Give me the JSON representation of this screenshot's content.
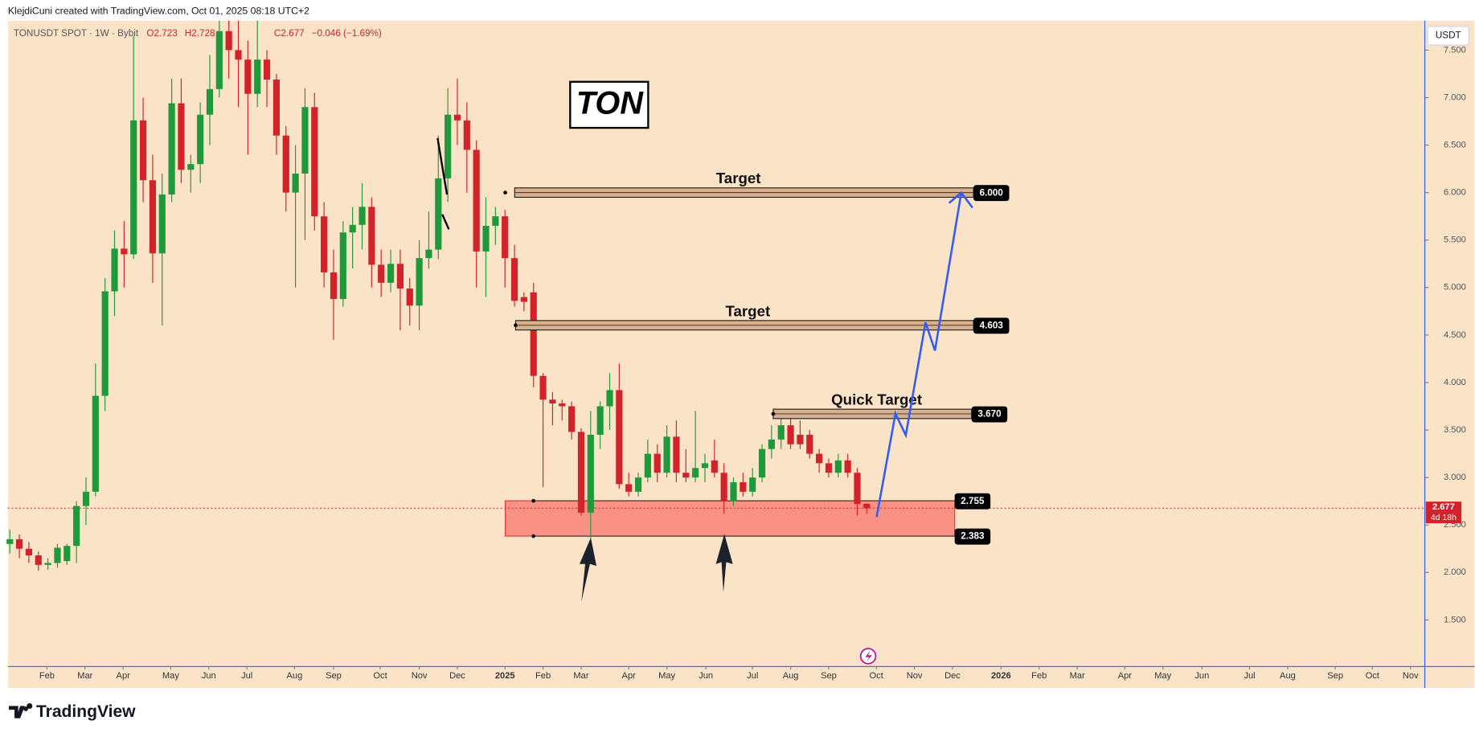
{
  "chart_data": {
    "type": "candlestick",
    "credit": "KlejdiCuni created with TradingView.com, Oct 01, 2025 08:18 UTC+2",
    "title": "TONUSDT SPOT · 1W · Bybit",
    "legend_values": [
      "O2.723",
      "H2.728",
      "C2.677",
      "−0.046 (−1.69%)"
    ],
    "currency": "USDT",
    "logo": "TradingView",
    "annotation": "TON",
    "up_color": "#1f9a3b",
    "down_color": "#d2232a",
    "open": [
      2.3,
      2.35,
      2.25,
      2.18,
      2.08,
      2.1,
      2.12,
      2.28,
      2.7,
      2.85,
      3.86,
      4.96,
      5.41,
      5.35,
      6.76,
      6.13,
      5.36,
      5.98,
      6.94,
      6.24,
      6.3,
      6.82,
      7.09,
      7.7,
      7.5,
      7.4,
      7.04,
      7.4,
      7.19,
      6.6,
      6.0,
      6.2,
      6.9,
      5.75,
      5.16,
      4.88,
      5.58,
      5.66,
      5.85,
      5.24,
      5.05,
      5.25,
      4.99,
      4.81,
      5.31,
      5.4,
      6.15,
      6.82,
      6.76,
      6.45,
      5.38,
      5.65,
      5.75,
      5.31,
      4.9,
      4.95,
      4.07,
      3.82,
      3.78,
      3.75,
      3.48,
      2.63,
      3.45,
      3.75,
      3.92,
      2.93,
      2.85,
      3.0,
      3.25,
      3.05,
      3.43,
      3.05,
      3.0,
      3.1,
      3.18,
      3.05,
      2.75,
      2.95,
      2.85,
      3.0,
      3.3,
      3.4,
      3.55,
      3.45,
      3.45,
      3.25,
      3.15,
      3.05,
      3.18,
      3.05,
      2.723
    ],
    "high": [
      2.45,
      2.4,
      2.32,
      2.22,
      2.15,
      2.3,
      2.3,
      2.75,
      3.0,
      4.2,
      5.1,
      5.6,
      5.7,
      7.65,
      7.0,
      6.4,
      6.2,
      7.2,
      7.2,
      6.4,
      6.95,
      7.45,
      7.81,
      7.81,
      7.81,
      7.6,
      7.81,
      7.5,
      7.25,
      6.7,
      6.5,
      7.1,
      7.05,
      5.9,
      5.4,
      5.7,
      5.85,
      6.1,
      5.95,
      5.4,
      5.4,
      5.4,
      5.1,
      5.5,
      5.8,
      6.6,
      7.1,
      7.2,
      6.95,
      6.55,
      5.95,
      5.85,
      5.82,
      5.45,
      4.95,
      5.05,
      4.1,
      3.9,
      3.82,
      3.8,
      3.52,
      3.7,
      3.8,
      4.1,
      4.2,
      3.05,
      3.05,
      3.4,
      3.35,
      3.55,
      3.6,
      3.3,
      3.7,
      3.25,
      3.4,
      3.15,
      3.0,
      3.05,
      3.1,
      3.35,
      3.55,
      3.72,
      3.65,
      3.6,
      3.5,
      3.3,
      3.2,
      3.25,
      3.25,
      3.1,
      2.728
    ],
    "low": [
      2.2,
      2.15,
      2.1,
      2.02,
      2.03,
      2.05,
      2.08,
      2.1,
      2.5,
      2.8,
      3.7,
      4.7,
      5.0,
      5.3,
      5.9,
      5.05,
      4.6,
      5.9,
      6.1,
      6.0,
      6.1,
      6.5,
      7.0,
      7.2,
      6.9,
      6.4,
      6.9,
      6.9,
      6.4,
      5.8,
      5.0,
      5.5,
      5.6,
      5.0,
      4.45,
      4.8,
      5.2,
      5.4,
      5.0,
      4.9,
      4.95,
      4.55,
      4.6,
      4.55,
      5.2,
      5.3,
      5.9,
      6.5,
      6.0,
      5.0,
      4.9,
      5.45,
      5.0,
      4.8,
      4.75,
      3.95,
      2.9,
      3.55,
      3.6,
      3.4,
      2.6,
      2.36,
      3.3,
      3.5,
      2.88,
      2.8,
      2.8,
      2.95,
      2.95,
      3.0,
      2.95,
      2.95,
      2.95,
      2.95,
      3.0,
      2.62,
      2.7,
      2.8,
      2.8,
      2.95,
      3.2,
      3.3,
      3.3,
      3.3,
      3.2,
      3.05,
      3.0,
      3.0,
      3.0,
      2.6,
      2.62
    ],
    "close": [
      2.35,
      2.25,
      2.18,
      2.08,
      2.1,
      2.26,
      2.28,
      2.7,
      2.85,
      3.86,
      4.96,
      5.41,
      5.35,
      6.76,
      6.13,
      5.36,
      5.98,
      6.94,
      6.24,
      6.3,
      6.82,
      7.09,
      7.7,
      7.5,
      7.4,
      7.04,
      7.4,
      7.19,
      6.6,
      6.0,
      6.2,
      6.9,
      5.75,
      5.16,
      4.88,
      5.58,
      5.66,
      5.85,
      5.24,
      5.05,
      5.25,
      4.99,
      4.81,
      5.31,
      5.4,
      6.15,
      6.82,
      6.76,
      6.45,
      5.38,
      5.65,
      5.75,
      5.31,
      4.86,
      4.85,
      4.07,
      3.82,
      3.78,
      3.75,
      3.48,
      2.63,
      3.45,
      3.75,
      3.92,
      2.93,
      2.85,
      3.0,
      3.25,
      3.05,
      3.43,
      3.05,
      3.0,
      3.1,
      3.15,
      3.05,
      2.75,
      2.95,
      2.85,
      3.0,
      3.3,
      3.4,
      3.55,
      3.35,
      3.35,
      3.25,
      3.15,
      3.05,
      3.18,
      3.05,
      2.72,
      2.677
    ],
    "xlim": [
      -0.2,
      148.6
    ],
    "xticks": [
      {
        "value": 3.9,
        "label": "Feb"
      },
      {
        "value": 7.9,
        "label": "Mar"
      },
      {
        "value": 11.9,
        "label": "Apr"
      },
      {
        "value": 16.9,
        "label": "May"
      },
      {
        "value": 20.9,
        "label": "Jun"
      },
      {
        "value": 24.9,
        "label": "Jul"
      },
      {
        "value": 29.9,
        "label": "Aug"
      },
      {
        "value": 34.0,
        "label": "Sep"
      },
      {
        "value": 38.9,
        "label": "Oct"
      },
      {
        "value": 43.0,
        "label": "Nov"
      },
      {
        "value": 47.0,
        "label": "Dec"
      },
      {
        "value": 52.0,
        "label": "2025"
      },
      {
        "value": 56.0,
        "label": "Feb"
      },
      {
        "value": 60.0,
        "label": "Mar"
      },
      {
        "value": 65.0,
        "label": "Apr"
      },
      {
        "value": 69.0,
        "label": "May"
      },
      {
        "value": 73.1,
        "label": "Jun"
      },
      {
        "value": 78.0,
        "label": "Jul"
      },
      {
        "value": 82.0,
        "label": "Aug"
      },
      {
        "value": 86.0,
        "label": "Sep"
      },
      {
        "value": 91.0,
        "label": "Oct"
      },
      {
        "value": 95.0,
        "label": "Nov"
      },
      {
        "value": 99.0,
        "label": "Dec"
      },
      {
        "value": 104.1,
        "label": "2026"
      },
      {
        "value": 108.1,
        "label": "Feb"
      },
      {
        "value": 112.1,
        "label": "Mar"
      },
      {
        "value": 117.1,
        "label": "Apr"
      },
      {
        "value": 121.1,
        "label": "May"
      },
      {
        "value": 125.2,
        "label": "Jun"
      },
      {
        "value": 130.2,
        "label": "Jul"
      },
      {
        "value": 134.2,
        "label": "Aug"
      },
      {
        "value": 139.2,
        "label": "Sep"
      },
      {
        "value": 143.1,
        "label": "Oct"
      },
      {
        "value": 147.1,
        "label": "Nov"
      }
    ],
    "ylim": [
      1.02,
      7.81
    ],
    "yticks": [
      {
        "value": 1.5,
        "label": "1.500"
      },
      {
        "value": 2.0,
        "label": "2.000"
      },
      {
        "value": 2.5,
        "label": "2.500"
      },
      {
        "value": 3.0,
        "label": "3.000"
      },
      {
        "value": 3.5,
        "label": "3.500"
      },
      {
        "value": 4.0,
        "label": "4.000"
      },
      {
        "value": 4.5,
        "label": "4.500"
      },
      {
        "value": 5.0,
        "label": "5.000"
      },
      {
        "value": 5.5,
        "label": "5.500"
      },
      {
        "value": 6.0,
        "label": "6.000"
      },
      {
        "value": 6.5,
        "label": "6.500"
      },
      {
        "value": 7.0,
        "label": "7.000"
      },
      {
        "value": 7.5,
        "label": "7.500"
      }
    ],
    "levels": [
      {
        "name": "Target",
        "price": {
          "value": 6.0,
          "label": "6.000"
        }
      },
      {
        "name": "Target",
        "price": {
          "value": 4.603,
          "label": "4.603"
        }
      },
      {
        "name": "Quick Target",
        "price": {
          "value": 3.67,
          "label": "3.670"
        }
      }
    ],
    "zone": {
      "top": {
        "value": 2.755,
        "label": "2.755"
      },
      "bottom": {
        "value": 2.383,
        "label": "2.383"
      }
    },
    "last_price": {
      "value": 2.677,
      "label": "2.677"
    },
    "countdown": "4d 18h"
  }
}
